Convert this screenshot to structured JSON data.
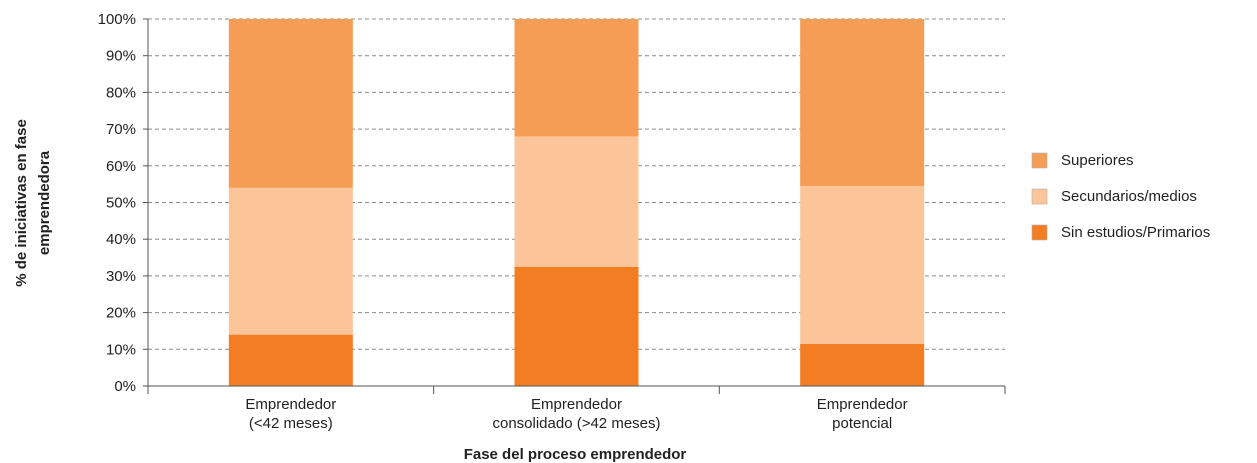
{
  "chart_data": {
    "type": "bar",
    "stacked": true,
    "normalized": true,
    "title": "",
    "xlabel": "Fase del proceso emprendedor",
    "ylabel_lines": [
      "% de iniciativas en fase",
      "emprendedora"
    ],
    "ylim": [
      0,
      100
    ],
    "yticks": [
      "0%",
      "10%",
      "20%",
      "30%",
      "40%",
      "50%",
      "60%",
      "70%",
      "80%",
      "90%",
      "100%"
    ],
    "grid": true,
    "legend_position": "right",
    "categories": [
      [
        "Emprendedor",
        "(<42 meses)"
      ],
      [
        "Emprendedor",
        "consolidado (>42 meses)"
      ],
      [
        "Emprendedor",
        "potencial"
      ]
    ],
    "series": [
      {
        "name": "Sin estudios/Primarios",
        "color": "#f37d22",
        "values": [
          14,
          32.5,
          11.5
        ]
      },
      {
        "name": "Secundarios/medios",
        "color": "#fcc499",
        "values": [
          40,
          35.5,
          43
        ]
      },
      {
        "name": "Superiores",
        "color": "#f69d55",
        "values": [
          46,
          32,
          45.5
        ]
      }
    ],
    "legend_order": [
      "Superiores",
      "Secundarios/medios",
      "Sin estudios/Primarios"
    ]
  }
}
